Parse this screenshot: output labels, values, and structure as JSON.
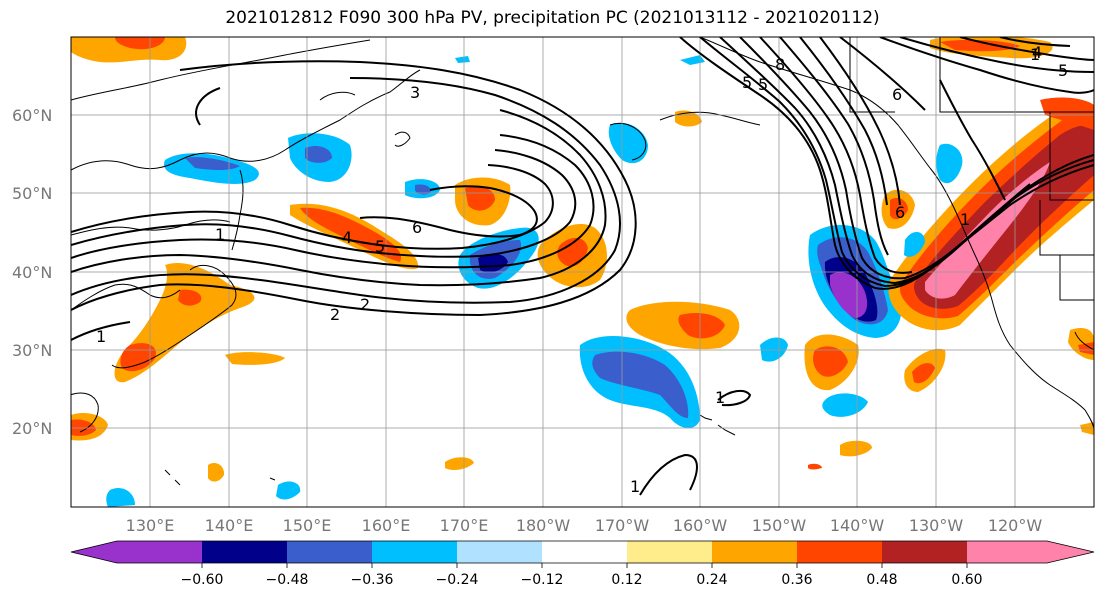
{
  "title": "2021012812 F090 300 hPa PV, precipitation PC (2021013112 - 2021020112)",
  "map": {
    "lat_labels": [
      "60°N",
      "50°N",
      "40°N",
      "30°N",
      "20°N"
    ],
    "lon_labels": [
      "130°E",
      "140°E",
      "150°E",
      "160°E",
      "170°E",
      "180°W",
      "170°W",
      "160°W",
      "150°W",
      "140°W",
      "130°W",
      "120°W"
    ],
    "contour_labels": [
      "3",
      "1",
      "8",
      "5",
      "2",
      "6",
      "4",
      "5",
      "6",
      "1",
      "5",
      "2",
      "1",
      "1",
      "1",
      "4",
      "5",
      "6",
      "1"
    ]
  },
  "colorbar": {
    "colors": [
      "#9932cc",
      "#00008b",
      "#3a5fcd",
      "#00bfff",
      "#b0e2ff",
      "#ffffff",
      "#ffec8b",
      "#ffa500",
      "#ff4500",
      "#b22222",
      "#ff82ab"
    ],
    "tick_labels": [
      "−0.60",
      "−0.48",
      "−0.36",
      "−0.24",
      "−0.12",
      "0.12",
      "0.24",
      "0.36",
      "0.48",
      "0.60"
    ]
  }
}
